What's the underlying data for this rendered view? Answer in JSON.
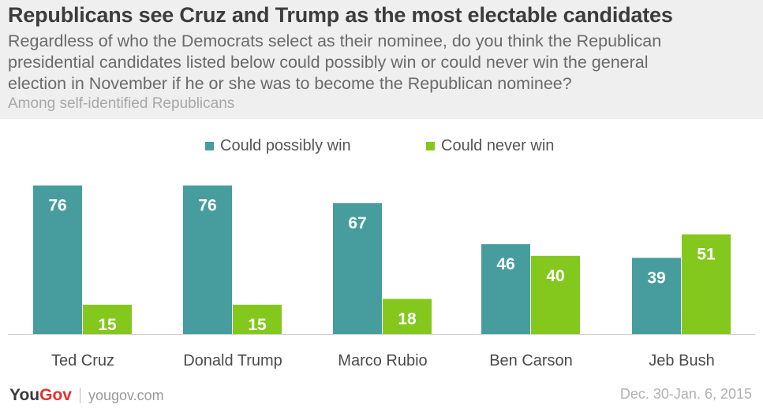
{
  "header": {
    "title": "Republicans see Cruz and Trump as the most electable candidates",
    "subtitle_lines": [
      "Regardless of who the Democrats select as their nominee, do you think the Republican",
      "presidential candidates listed below could possibly win or could never win the general",
      "election in November if he or she was to become the Republican nominee?"
    ],
    "note": "Among self-identified Republicans"
  },
  "footer": {
    "logo_you": "YouGov",
    "logo_gov": "",
    "site": "yougov.com",
    "date": "Dec. 30-Jan. 6, 2015"
  },
  "chart_data": {
    "type": "bar",
    "title": "Republicans see Cruz and Trump as the most electable candidates",
    "categories": [
      "Ted Cruz",
      "Donald Trump",
      "Marco Rubio",
      "Ben Carson",
      "Jeb Bush"
    ],
    "series": [
      {
        "name": "Could possibly win",
        "color": "#479d9e",
        "values": [
          76,
          76,
          67,
          46,
          39
        ]
      },
      {
        "name": "Could never win",
        "color": "#84c81d",
        "values": [
          15,
          15,
          18,
          40,
          51
        ]
      }
    ],
    "ylim": [
      0,
      100
    ],
    "grid": false,
    "legend": "top-center",
    "value_labels": true
  }
}
